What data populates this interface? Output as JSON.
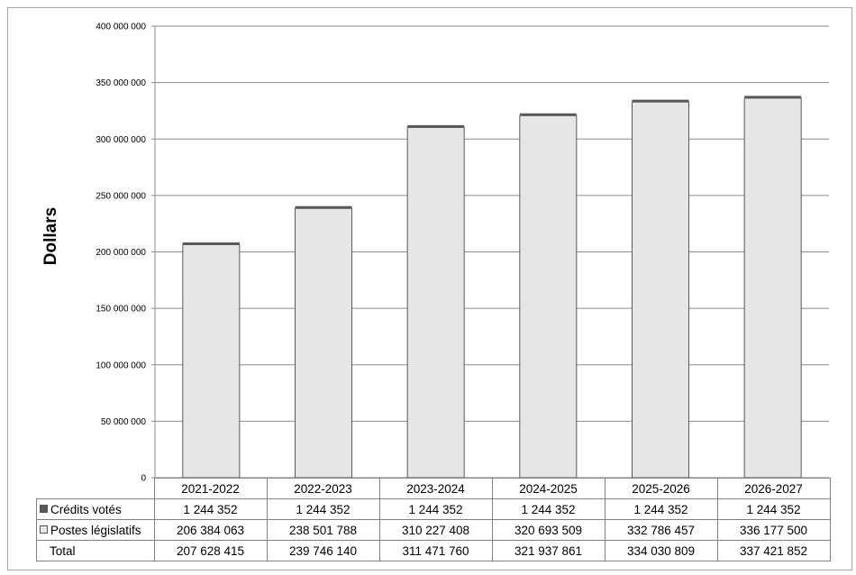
{
  "chart_data": {
    "type": "bar",
    "stacked": true,
    "title": "",
    "xlabel": "",
    "ylabel": "Dollars",
    "ylim": [
      0,
      400000000
    ],
    "yticks": [
      "0",
      "50 000 000",
      "100 000 000",
      "150 000 000",
      "200 000 000",
      "250 000 000",
      "300 000 000",
      "350 000 000",
      "400 000 000"
    ],
    "grid": true,
    "legend": "data-table",
    "categories": [
      "2021-2022",
      "2022-2023",
      "2023-2024",
      "2024-2025",
      "2025-2026",
      "2026-2027"
    ],
    "series": [
      {
        "name": "Postes législatifs",
        "color": "#e6e6e6",
        "values": [
          206384063,
          238501788,
          310227408,
          320693509,
          332786457,
          336177500
        ],
        "labels": [
          "206 384 063",
          "238 501 788",
          "310 227 408",
          "320 693 509",
          "332 786 457",
          "336 177 500"
        ]
      },
      {
        "name": "Crédits votés",
        "color": "#595959",
        "values": [
          1244352,
          1244352,
          1244352,
          1244352,
          1244352,
          1244352
        ],
        "labels": [
          "1 244 352",
          "1 244 352",
          "1 244 352",
          "1 244 352",
          "1 244 352",
          "1 244 352"
        ]
      }
    ],
    "total": {
      "name": "Total",
      "values": [
        207628415,
        239746140,
        311471760,
        321937861,
        334030809,
        337421852
      ],
      "labels": [
        "207 628 415",
        "239 746 140",
        "311 471 760",
        "321 937 861",
        "334 030 809",
        "337 421 852"
      ]
    }
  }
}
